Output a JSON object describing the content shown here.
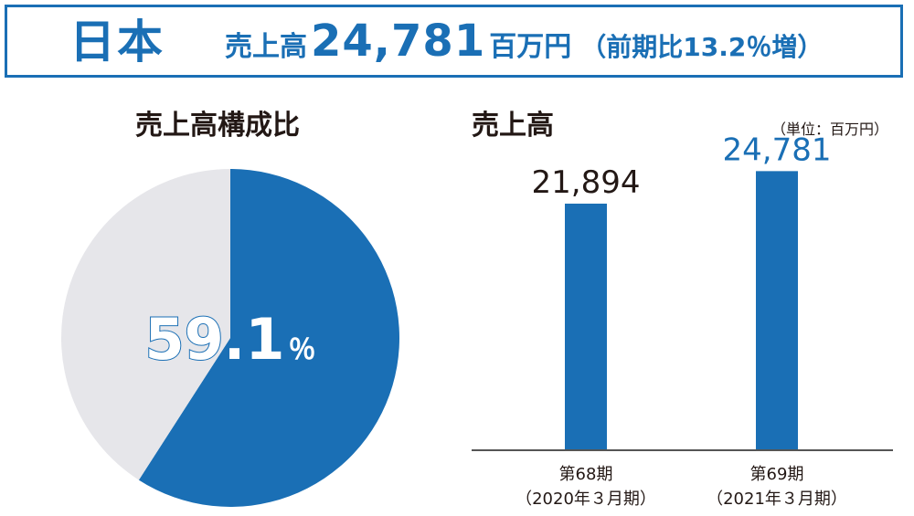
{
  "header": {
    "region": "日本",
    "sales_label": "売上高",
    "sales_value": "24,781",
    "sales_unit": "百万円",
    "growth": "（前期比13.2％増）"
  },
  "pie_section": {
    "title": "売上高構成比",
    "center_value": "59.1",
    "center_unit": "％"
  },
  "bar_section": {
    "title": "売上高",
    "unit_note": "（単位：百万円）"
  },
  "colors": {
    "accent": "#1a6fb5",
    "pie_rest": "#e6e6ea",
    "text": "#231815",
    "axis": "#555555"
  },
  "chart_data": [
    {
      "type": "pie",
      "title": "売上高構成比",
      "slices": [
        {
          "label": "日本",
          "value": 59.1,
          "color": "#1a6fb5"
        },
        {
          "label": "",
          "value": 40.9,
          "color": "#e6e6ea"
        }
      ]
    },
    {
      "type": "bar",
      "title": "売上高",
      "unit": "（単位：百万円）",
      "categories": [
        {
          "line1": "第68期",
          "line2": "（2020年３月期）"
        },
        {
          "line1": "第69期",
          "line2": "（2021年３月期）"
        }
      ],
      "values": [
        21894,
        24781
      ],
      "value_labels": [
        "21,894",
        "24,781"
      ],
      "label_colors": [
        "#231815",
        "#1a6fb5"
      ],
      "bar_color": "#1a6fb5",
      "ylim": [
        0,
        27000
      ]
    }
  ]
}
